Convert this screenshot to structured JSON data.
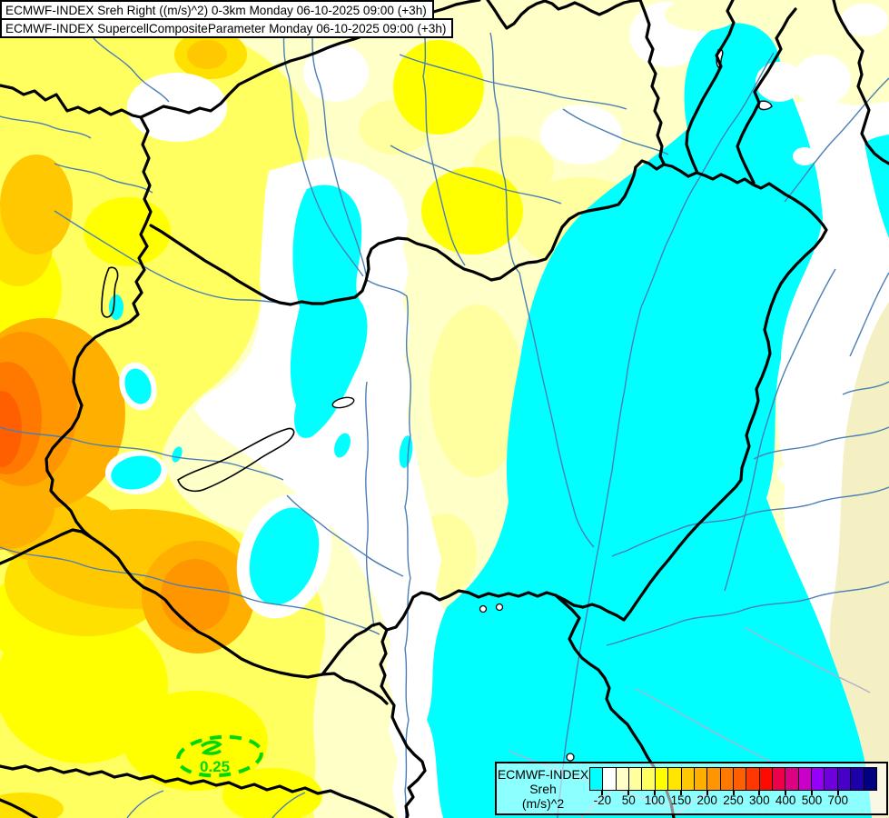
{
  "titles": {
    "line1": "ECMWF-INDEX Sreh Right ((m/s)^2) 0-3km Monday 06-10-2025 09:00 (+3h)",
    "line2": "ECMWF-INDEX SupercellCompositeParameter Monday 06-10-2025 09:00 (+3h)"
  },
  "map": {
    "scp_contour_label": "0.25",
    "scp_contour_color": "#00D800",
    "river_color": "#4A7FB5",
    "minor_line_color": "#AFAFD0",
    "border_color": "#000000",
    "base_fill": "#FFFFC8",
    "negative_fill": "#00FFFF"
  },
  "legend": {
    "title_lines": [
      "ECMWF-INDEX",
      "Sreh",
      "(m/s)^2"
    ],
    "box_colors": [
      "#00FFFF",
      "#FFFFFF",
      "#FFFFC8",
      "#FFFFA0",
      "#FFFF5F",
      "#FFFF00",
      "#FFE600",
      "#FFC800",
      "#FFAF00",
      "#FF9600",
      "#FF7800",
      "#FF5F00",
      "#FF3700",
      "#FF0A00",
      "#ED0049",
      "#DC0082",
      "#C800C8",
      "#9600FA",
      "#6E00DC",
      "#4600C8",
      "#1E00AA",
      "#000080"
    ],
    "tick_labels": [
      "-20",
      "50",
      "100",
      "150",
      "200",
      "250",
      "300",
      "400",
      "500",
      "700"
    ],
    "tick_boundaries": [
      1,
      3,
      5,
      7,
      9,
      11,
      13,
      15,
      17,
      19
    ]
  }
}
